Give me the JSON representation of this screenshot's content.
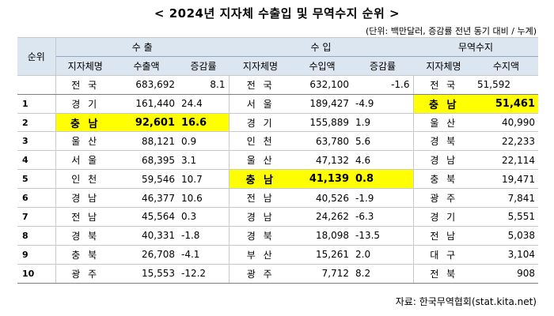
{
  "title": "< 2024년 지자체 수출입 및 무역수지 순위 >",
  "unit_note": "(단위: 백만달러, 증감률 전년 동기 대비 / 누계)",
  "headers": {
    "rank": "순위",
    "export_group": "수 출",
    "import_group": "수 입",
    "balance_group": "무역수지",
    "region": "지자체명",
    "export_amount": "수출액",
    "rate": "증감률",
    "import_amount": "수입액",
    "balance_amount": "수지액"
  },
  "total": {
    "rank": "",
    "exp_region": "전 국",
    "exp_amount": "683,692",
    "exp_rate": "8.1",
    "imp_region": "전 국",
    "imp_amount": "632,100",
    "imp_rate": "-1.6",
    "bal_region": "전 국",
    "bal_amount": "51,592"
  },
  "rows": [
    {
      "rank": "1",
      "exp_region": "경 기",
      "exp_amount": "161,440",
      "exp_rate": "24.4",
      "imp_region": "서 울",
      "imp_amount": "189,427",
      "imp_rate": "-4.9",
      "bal_region": "충 남",
      "bal_amount": "51,461"
    },
    {
      "rank": "2",
      "exp_region": "충 남",
      "exp_amount": "92,601",
      "exp_rate": "16.6",
      "imp_region": "경 기",
      "imp_amount": "155,889",
      "imp_rate": "1.9",
      "bal_region": "울 산",
      "bal_amount": "40,990"
    },
    {
      "rank": "3",
      "exp_region": "울 산",
      "exp_amount": "88,121",
      "exp_rate": "0.9",
      "imp_region": "인 천",
      "imp_amount": "63,780",
      "imp_rate": "5.6",
      "bal_region": "경 북",
      "bal_amount": "22,233"
    },
    {
      "rank": "4",
      "exp_region": "서 울",
      "exp_amount": "68,395",
      "exp_rate": "3.1",
      "imp_region": "울 산",
      "imp_amount": "47,132",
      "imp_rate": "4.6",
      "bal_region": "경 남",
      "bal_amount": "22,114"
    },
    {
      "rank": "5",
      "exp_region": "인 천",
      "exp_amount": "59,546",
      "exp_rate": "10.7",
      "imp_region": "충 남",
      "imp_amount": "41,139",
      "imp_rate": "0.8",
      "bal_region": "충 북",
      "bal_amount": "19,471"
    },
    {
      "rank": "6",
      "exp_region": "경 남",
      "exp_amount": "46,377",
      "exp_rate": "10.6",
      "imp_region": "전 남",
      "imp_amount": "40,526",
      "imp_rate": "-1.9",
      "bal_region": "광 주",
      "bal_amount": "7,841"
    },
    {
      "rank": "7",
      "exp_region": "전 남",
      "exp_amount": "45,564",
      "exp_rate": "0.3",
      "imp_region": "경 남",
      "imp_amount": "24,262",
      "imp_rate": "-6.3",
      "bal_region": "경 기",
      "bal_amount": "5,551"
    },
    {
      "rank": "8",
      "exp_region": "경 북",
      "exp_amount": "40,331",
      "exp_rate": "-1.8",
      "imp_region": "경 북",
      "imp_amount": "18,098",
      "imp_rate": "-13.5",
      "bal_region": "전 남",
      "bal_amount": "5,038"
    },
    {
      "rank": "9",
      "exp_region": "충 북",
      "exp_amount": "26,708",
      "exp_rate": "-4.1",
      "imp_region": "부 산",
      "imp_amount": "15,261",
      "imp_rate": "2.0",
      "bal_region": "대 구",
      "bal_amount": "3,104"
    },
    {
      "rank": "10",
      "exp_region": "광 주",
      "exp_amount": "15,553",
      "exp_rate": "-12.2",
      "imp_region": "광 주",
      "imp_amount": "7,712",
      "imp_rate": "8.2",
      "bal_region": "전 북",
      "bal_amount": "908"
    }
  ],
  "highlight_color": "#ffff00",
  "header_bg_color": "#dce6f1",
  "source": "자료: 한국무역협회(stat.kita.net)"
}
